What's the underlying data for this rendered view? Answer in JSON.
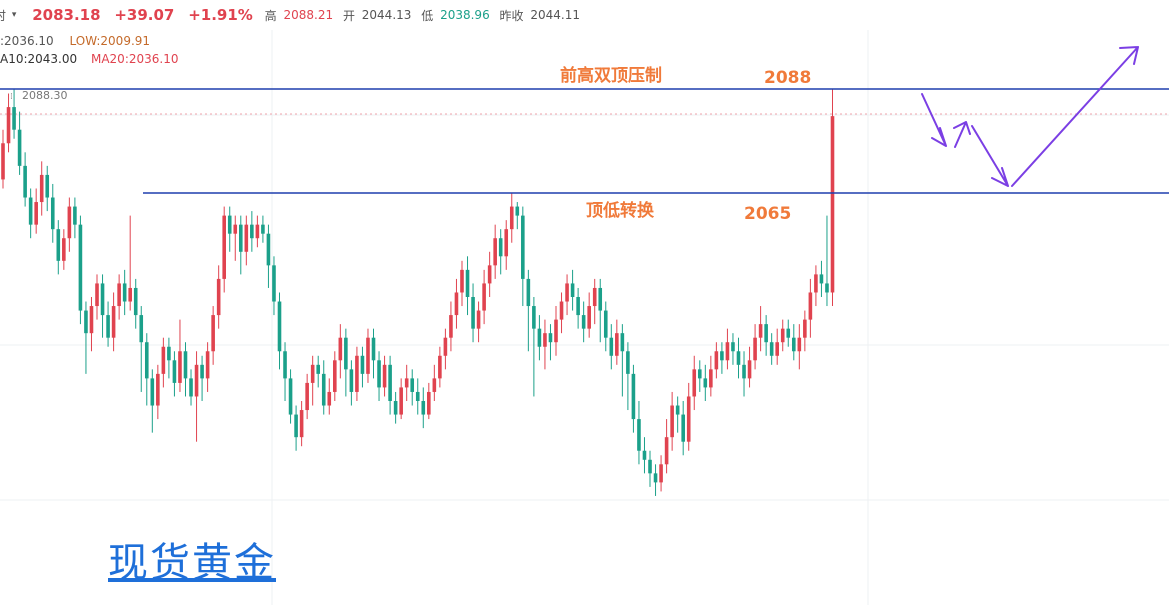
{
  "header": {
    "left_fragment": "时",
    "dropdown_icon": "caret-down-icon",
    "price": "2083.18",
    "change": "+39.07",
    "change_pct": "+1.91%",
    "high_label": "高",
    "high": "2088.21",
    "open_label": "开",
    "open": "2044.13",
    "low_label": "低",
    "low": "2038.96",
    "prev_close_label": "昨收",
    "prev_close": "2044.11"
  },
  "indicators": {
    "line1_partial": ":2036.10",
    "low_label": "LOW:2009.91",
    "ma10": "A10:2043.00",
    "ma20": "MA20:2036.10"
  },
  "colors": {
    "up": "#e0434f",
    "down": "#1ba08a",
    "level_line": "#1e3fae",
    "annotation": "#f07a3a",
    "arrow": "#7b3fe4",
    "watermark": "#1e6fd9"
  },
  "watermark": "现货黄金",
  "chart_data": {
    "type": "candlestick",
    "price_tag": "2088.30",
    "ylim": [
      2000,
      2095
    ],
    "levels": [
      {
        "value": 2088,
        "text": "前高双顶压制",
        "value_text": "2088"
      },
      {
        "value": 2065,
        "text": "顶低转换",
        "value_text": "2065"
      }
    ],
    "candles": [
      [
        2068,
        2076,
        2066,
        2079
      ],
      [
        2076,
        2084,
        2074,
        2087
      ],
      [
        2084,
        2079,
        2077,
        2088
      ],
      [
        2079,
        2071,
        2069,
        2083
      ],
      [
        2071,
        2064,
        2062,
        2074
      ],
      [
        2064,
        2058,
        2055,
        2066
      ],
      [
        2058,
        2063,
        2056,
        2066
      ],
      [
        2063,
        2069,
        2060,
        2072
      ],
      [
        2069,
        2064,
        2061,
        2071
      ],
      [
        2064,
        2057,
        2054,
        2067
      ],
      [
        2057,
        2050,
        2047,
        2059
      ],
      [
        2050,
        2055,
        2048,
        2057
      ],
      [
        2055,
        2062,
        2052,
        2064
      ],
      [
        2062,
        2058,
        2055,
        2064
      ],
      [
        2058,
        2039,
        2036,
        2060
      ],
      [
        2039,
        2034,
        2025,
        2041
      ],
      [
        2034,
        2040,
        2030,
        2042
      ],
      [
        2040,
        2045,
        2037,
        2047
      ],
      [
        2045,
        2038,
        2033,
        2047
      ],
      [
        2038,
        2033,
        2031,
        2041
      ],
      [
        2033,
        2040,
        2030,
        2043
      ],
      [
        2040,
        2045,
        2037,
        2047
      ],
      [
        2045,
        2041,
        2038,
        2048
      ],
      [
        2041,
        2044,
        2039,
        2060
      ],
      [
        2044,
        2038,
        2035,
        2046
      ],
      [
        2038,
        2032,
        2021,
        2040
      ],
      [
        2032,
        2024,
        2018,
        2034
      ],
      [
        2024,
        2018,
        2012,
        2026
      ],
      [
        2018,
        2025,
        2015,
        2027
      ],
      [
        2025,
        2031,
        2022,
        2033
      ],
      [
        2031,
        2028,
        2024,
        2033
      ],
      [
        2028,
        2023,
        2020,
        2030
      ],
      [
        2023,
        2030,
        2021,
        2037
      ],
      [
        2030,
        2024,
        2020,
        2032
      ],
      [
        2024,
        2020,
        2018,
        2026
      ],
      [
        2020,
        2027,
        2010,
        2030
      ],
      [
        2027,
        2024,
        2019,
        2029
      ],
      [
        2024,
        2030,
        2021,
        2032
      ],
      [
        2030,
        2038,
        2027,
        2040
      ],
      [
        2038,
        2046,
        2035,
        2049
      ],
      [
        2046,
        2060,
        2043,
        2062
      ],
      [
        2060,
        2056,
        2052,
        2062
      ],
      [
        2056,
        2058,
        2050,
        2060
      ],
      [
        2058,
        2052,
        2047,
        2060
      ],
      [
        2052,
        2058,
        2049,
        2060
      ],
      [
        2058,
        2055,
        2052,
        2061
      ],
      [
        2055,
        2058,
        2053,
        2060
      ],
      [
        2058,
        2056,
        2054,
        2060
      ],
      [
        2056,
        2049,
        2044,
        2058
      ],
      [
        2049,
        2041,
        2038,
        2051
      ],
      [
        2041,
        2030,
        2026,
        2043
      ],
      [
        2030,
        2024,
        2019,
        2032
      ],
      [
        2024,
        2016,
        2014,
        2026
      ],
      [
        2016,
        2011,
        2008,
        2018
      ],
      [
        2011,
        2017,
        2009,
        2019
      ],
      [
        2017,
        2023,
        2015,
        2025
      ],
      [
        2023,
        2027,
        2018,
        2029
      ],
      [
        2027,
        2025,
        2022,
        2029
      ],
      [
        2025,
        2018,
        2016,
        2028
      ],
      [
        2018,
        2021,
        2016,
        2024
      ],
      [
        2021,
        2028,
        2019,
        2030
      ],
      [
        2028,
        2033,
        2024,
        2036
      ],
      [
        2033,
        2026,
        2020,
        2035
      ],
      [
        2026,
        2021,
        2018,
        2028
      ],
      [
        2021,
        2029,
        2019,
        2031
      ],
      [
        2029,
        2025,
        2022,
        2031
      ],
      [
        2025,
        2033,
        2023,
        2035
      ],
      [
        2033,
        2028,
        2024,
        2035
      ],
      [
        2028,
        2022,
        2019,
        2030
      ],
      [
        2022,
        2027,
        2020,
        2029
      ],
      [
        2027,
        2019,
        2016,
        2029
      ],
      [
        2019,
        2016,
        2014,
        2021
      ],
      [
        2016,
        2022,
        2015,
        2024
      ],
      [
        2022,
        2024,
        2019,
        2027
      ],
      [
        2024,
        2021,
        2018,
        2026
      ],
      [
        2021,
        2019,
        2016,
        2024
      ],
      [
        2019,
        2016,
        2013,
        2022
      ],
      [
        2016,
        2021,
        2015,
        2023
      ],
      [
        2021,
        2024,
        2019,
        2027
      ],
      [
        2024,
        2029,
        2022,
        2031
      ],
      [
        2029,
        2033,
        2026,
        2035
      ],
      [
        2033,
        2038,
        2030,
        2041
      ],
      [
        2038,
        2043,
        2035,
        2046
      ],
      [
        2043,
        2048,
        2040,
        2050
      ],
      [
        2048,
        2042,
        2038,
        2051
      ],
      [
        2042,
        2035,
        2032,
        2045
      ],
      [
        2035,
        2039,
        2032,
        2041
      ],
      [
        2039,
        2045,
        2036,
        2048
      ],
      [
        2045,
        2049,
        2042,
        2052
      ],
      [
        2049,
        2055,
        2046,
        2058
      ],
      [
        2055,
        2051,
        2047,
        2057
      ],
      [
        2051,
        2057,
        2048,
        2059
      ],
      [
        2057,
        2062,
        2054,
        2065
      ],
      [
        2062,
        2060,
        2057,
        2063
      ],
      [
        2060,
        2046,
        2040,
        2062
      ],
      [
        2046,
        2040,
        2030,
        2048
      ],
      [
        2040,
        2035,
        2020,
        2042
      ],
      [
        2035,
        2031,
        2028,
        2038
      ],
      [
        2031,
        2034,
        2026,
        2037
      ],
      [
        2034,
        2032,
        2028,
        2036
      ],
      [
        2032,
        2037,
        2029,
        2040
      ],
      [
        2037,
        2041,
        2034,
        2043
      ],
      [
        2041,
        2045,
        2038,
        2047
      ],
      [
        2045,
        2042,
        2039,
        2048
      ],
      [
        2042,
        2038,
        2035,
        2044
      ],
      [
        2038,
        2035,
        2032,
        2041
      ],
      [
        2035,
        2040,
        2033,
        2043
      ],
      [
        2040,
        2044,
        2036,
        2046
      ],
      [
        2044,
        2039,
        2032,
        2046
      ],
      [
        2039,
        2033,
        2030,
        2041
      ],
      [
        2033,
        2029,
        2026,
        2036
      ],
      [
        2029,
        2034,
        2027,
        2037
      ],
      [
        2034,
        2030,
        2020,
        2036
      ],
      [
        2030,
        2025,
        2017,
        2032
      ],
      [
        2025,
        2015,
        2012,
        2027
      ],
      [
        2015,
        2008,
        2005,
        2019
      ],
      [
        2008,
        2006,
        2003,
        2011
      ],
      [
        2006,
        2003,
        2000,
        2008
      ],
      [
        2003,
        2001,
        1998,
        2005
      ],
      [
        2001,
        2005,
        1999,
        2007
      ],
      [
        2005,
        2011,
        2003,
        2015
      ],
      [
        2011,
        2018,
        2008,
        2021
      ],
      [
        2018,
        2016,
        2012,
        2020
      ],
      [
        2016,
        2010,
        2007,
        2019
      ],
      [
        2010,
        2020,
        2008,
        2023
      ],
      [
        2020,
        2026,
        2017,
        2029
      ],
      [
        2026,
        2024,
        2021,
        2028
      ],
      [
        2024,
        2022,
        2019,
        2027
      ],
      [
        2022,
        2026,
        2020,
        2029
      ],
      [
        2026,
        2030,
        2024,
        2032
      ],
      [
        2030,
        2028,
        2025,
        2032
      ],
      [
        2028,
        2032,
        2026,
        2035
      ],
      [
        2032,
        2030,
        2027,
        2034
      ],
      [
        2030,
        2027,
        2024,
        2033
      ],
      [
        2027,
        2024,
        2020,
        2030
      ],
      [
        2024,
        2028,
        2022,
        2031
      ],
      [
        2028,
        2033,
        2026,
        2036
      ],
      [
        2033,
        2036,
        2030,
        2040
      ],
      [
        2036,
        2032,
        2029,
        2038
      ],
      [
        2032,
        2029,
        2027,
        2034
      ],
      [
        2029,
        2032,
        2027,
        2035
      ],
      [
        2032,
        2035,
        2030,
        2037
      ],
      [
        2035,
        2033,
        2031,
        2037
      ],
      [
        2033,
        2030,
        2028,
        2036
      ],
      [
        2030,
        2033,
        2026,
        2036
      ],
      [
        2033,
        2037,
        2030,
        2039
      ],
      [
        2037,
        2043,
        2033,
        2046
      ],
      [
        2043,
        2047,
        2040,
        2049
      ],
      [
        2047,
        2045,
        2042,
        2050
      ],
      [
        2045,
        2043,
        2040,
        2060
      ],
      [
        2043,
        2082,
        2040,
        2088
      ]
    ],
    "annotations": [
      {
        "text": "前高双顶压制"
      },
      {
        "text": "2088"
      },
      {
        "text": "顶低转换"
      },
      {
        "text": "2065"
      }
    ]
  }
}
